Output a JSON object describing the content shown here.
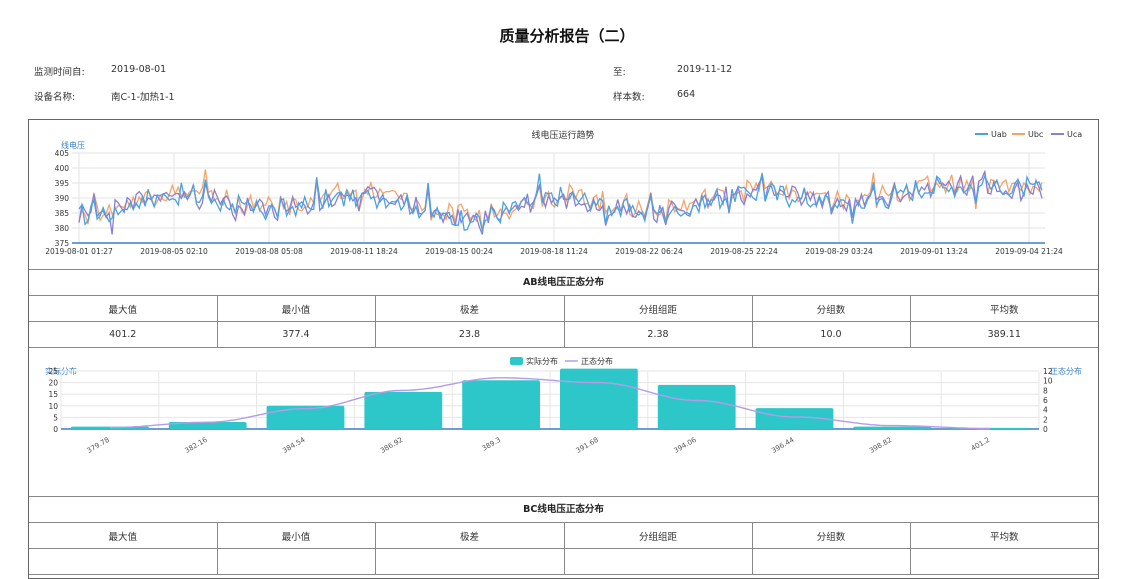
{
  "report": {
    "title": "质量分析报告（二）",
    "start_label": "监测时间自:",
    "start_value": "2019-08-01",
    "end_label": "至:",
    "end_value": "2019-11-12",
    "device_label": "设备名称:",
    "device_value": "南C-1-加热1-1",
    "sample_label": "样本数:",
    "sample_value": "664"
  },
  "colors": {
    "Uab": "#4aa3df",
    "Ubc": "#f4a36c",
    "Uca": "#8a7fd6",
    "bar": "#2ec7c9",
    "curve": "#b49ce8",
    "axis": "#3a7fc8"
  },
  "sections": {
    "ab": {
      "title": "AB线电压正态分布",
      "headers": [
        "最大值",
        "最小值",
        "极差",
        "分组组距",
        "分组数",
        "平均数"
      ],
      "values": [
        "401.2",
        "377.4",
        "23.8",
        "2.38",
        "10.0",
        "389.11"
      ]
    },
    "bc": {
      "title": "BC线电压正态分布",
      "headers": [
        "最大值",
        "最小值",
        "极差",
        "分组组距",
        "分组数",
        "平均数"
      ]
    }
  },
  "chart_data": [
    {
      "type": "line",
      "title": "线电压运行趋势",
      "ylabel": "线电压",
      "xlabel": "",
      "ylim": [
        375,
        405
      ],
      "yticks": [
        375,
        380,
        385,
        390,
        395,
        400,
        405
      ],
      "grid": true,
      "legend_position": "top-right",
      "x": [
        "2019-08-01 01:27",
        "2019-08-05 02:10",
        "2019-08-08 05:08",
        "2019-08-11 18:24",
        "2019-08-15 00:24",
        "2019-08-18 11:24",
        "2019-08-22 06:24",
        "2019-08-25 22:24",
        "2019-08-29 03:24",
        "2019-09-01 13:24",
        "2019-09-04 21:24"
      ],
      "series": [
        {
          "name": "Uab",
          "values": [
            384,
            391,
            386,
            391,
            383,
            390,
            385,
            392,
            388,
            394,
            393
          ]
        },
        {
          "name": "Ubc",
          "values": [
            385,
            392,
            387,
            392,
            384,
            391,
            386,
            393,
            389,
            395,
            394
          ]
        },
        {
          "name": "Uca",
          "values": [
            384,
            391,
            386,
            391,
            383,
            390,
            385,
            392,
            388,
            394,
            393
          ]
        }
      ]
    },
    {
      "type": "bar",
      "title": "",
      "ylabel": "实际分布",
      "y2label": "正态分布",
      "ylim": [
        0,
        25
      ],
      "yticks": [
        0,
        5,
        10,
        15,
        20,
        25
      ],
      "y2lim": [
        0,
        12
      ],
      "y2ticks": [
        0,
        2,
        4,
        6,
        8,
        10,
        12
      ],
      "grid": true,
      "legend_position": "top-center",
      "categories": [
        "379.78",
        "382.16",
        "384.54",
        "386.92",
        "389.3",
        "391.68",
        "394.06",
        "396.44",
        "398.82",
        "401.2"
      ],
      "series": [
        {
          "name": "实际分布",
          "type": "bar",
          "values": [
            1,
            3,
            10,
            16,
            21,
            26,
            19,
            9,
            1,
            0.5
          ]
        },
        {
          "name": "正态分布",
          "type": "line",
          "values": [
            0.3,
            1.4,
            4.2,
            8.0,
            10.6,
            9.6,
            5.9,
            2.5,
            0.7,
            0.1
          ]
        }
      ]
    }
  ]
}
